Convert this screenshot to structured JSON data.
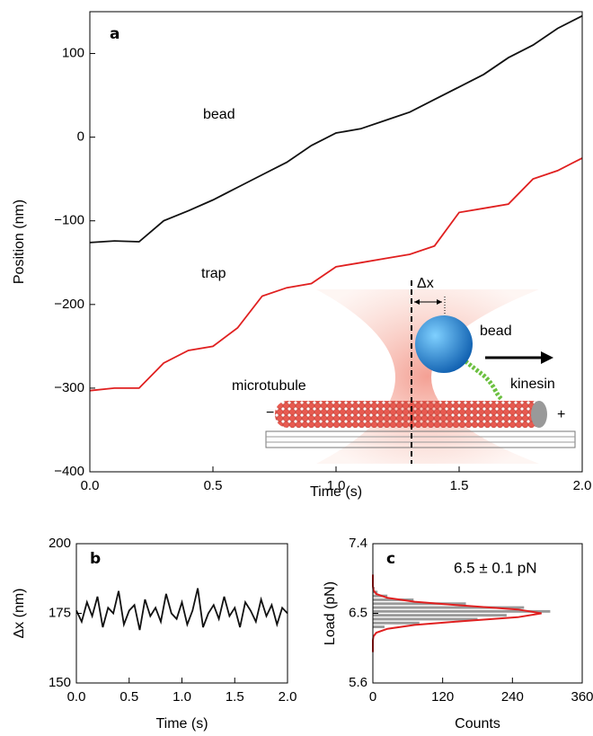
{
  "chart_data": [
    {
      "type": "line",
      "panel_label": "a",
      "xlabel": "Time (s)",
      "ylabel": "Position (nm)",
      "xlim": [
        0,
        2
      ],
      "ylim": [
        -400,
        150
      ],
      "xticks": [
        {
          "value": 0,
          "label": "0.0"
        },
        0.5,
        {
          "value": 1,
          "label": "1.0"
        },
        1.5,
        {
          "value": 2,
          "label": "2.0"
        }
      ],
      "yticks": [
        {
          "value": -400,
          "label": "−400"
        },
        {
          "value": -300,
          "label": "−300"
        },
        {
          "value": -200,
          "label": "−200"
        },
        {
          "value": -100,
          "label": "−100"
        },
        0,
        100
      ],
      "x": [
        0,
        0.1,
        0.2,
        0.3,
        0.4,
        0.5,
        0.6,
        0.7,
        0.8,
        0.9,
        1,
        1.1,
        1.2,
        1.3,
        1.4,
        1.5,
        1.6,
        1.7,
        1.8,
        1.9,
        2
      ],
      "series": [
        {
          "name": "bead",
          "color": "#111111",
          "values": [
            -126,
            -124,
            -125,
            -100,
            -88,
            -75,
            -60,
            -45,
            -30,
            -10,
            5,
            10,
            20,
            30,
            45,
            60,
            75,
            95,
            110,
            130,
            145
          ]
        },
        {
          "name": "trap",
          "color": "#e02020",
          "values": [
            -303,
            -300,
            -300,
            -270,
            -255,
            -250,
            -228,
            -190,
            -180,
            -175,
            -155,
            -150,
            -145,
            -140,
            -130,
            -90,
            -85,
            -80,
            -50,
            -40,
            -25
          ]
        }
      ],
      "annotations": [
        "Δx",
        "bead",
        "kinesin",
        "microtubule",
        "−",
        "+"
      ]
    },
    {
      "type": "line",
      "panel_label": "b",
      "xlabel": "Time (s)",
      "ylabel": "Δx (nm)",
      "xlim": [
        0,
        2
      ],
      "ylim": [
        150,
        200
      ],
      "xticks": [
        {
          "value": 0,
          "label": "0.0"
        },
        0.5,
        {
          "value": 1,
          "label": "1.0"
        },
        1.5,
        {
          "value": 2,
          "label": "2.0"
        }
      ],
      "yticks": [
        150,
        175,
        200
      ],
      "x": [
        0,
        0.05,
        0.1,
        0.15,
        0.2,
        0.25,
        0.3,
        0.35,
        0.4,
        0.45,
        0.5,
        0.55,
        0.6,
        0.65,
        0.7,
        0.75,
        0.8,
        0.85,
        0.9,
        0.95,
        1,
        1.05,
        1.1,
        1.15,
        1.2,
        1.25,
        1.3,
        1.35,
        1.4,
        1.45,
        1.5,
        1.55,
        1.6,
        1.65,
        1.7,
        1.75,
        1.8,
        1.85,
        1.9,
        1.95,
        2
      ],
      "series": [
        {
          "name": "Δx",
          "color": "#111111",
          "values": [
            176,
            172,
            179,
            174,
            181,
            170,
            177,
            175,
            183,
            171,
            176,
            178,
            169,
            180,
            174,
            177,
            172,
            182,
            175,
            173,
            179,
            171,
            176,
            184,
            170,
            175,
            178,
            173,
            181,
            174,
            177,
            170,
            179,
            176,
            172,
            180,
            174,
            178,
            171,
            177,
            175
          ]
        }
      ]
    },
    {
      "type": "histogram",
      "panel_label": "c",
      "xlabel": "Counts",
      "ylabel": "Load (pN)",
      "annotation": "6.5 ± 0.1 pN",
      "xlim": [
        0,
        360
      ],
      "ylim": [
        5.6,
        7.4
      ],
      "xticks": [
        0,
        120,
        240,
        360
      ],
      "yticks": [
        5.6,
        6.5,
        7.4
      ],
      "color": "#999999",
      "bins": [
        6.3,
        6.35,
        6.4,
        6.45,
        6.5,
        6.55,
        6.6,
        6.65,
        6.7,
        6.75,
        6.8,
        6.85
      ],
      "counts": [
        20,
        80,
        180,
        230,
        305,
        260,
        160,
        70,
        25,
        8,
        3
      ],
      "fit": {
        "color": "#e02020",
        "load": [
          6.0,
          6.05,
          6.1,
          6.15,
          6.2,
          6.25,
          6.3,
          6.35,
          6.4,
          6.45,
          6.5,
          6.55,
          6.6,
          6.65,
          6.7,
          6.75,
          6.8,
          6.85,
          6.9,
          6.95,
          7.0
        ],
        "counts": [
          0,
          0,
          0,
          0,
          1,
          6,
          25,
          72,
          156,
          249,
          290,
          249,
          156,
          72,
          25,
          6,
          1,
          0,
          0,
          0,
          0
        ]
      }
    }
  ]
}
